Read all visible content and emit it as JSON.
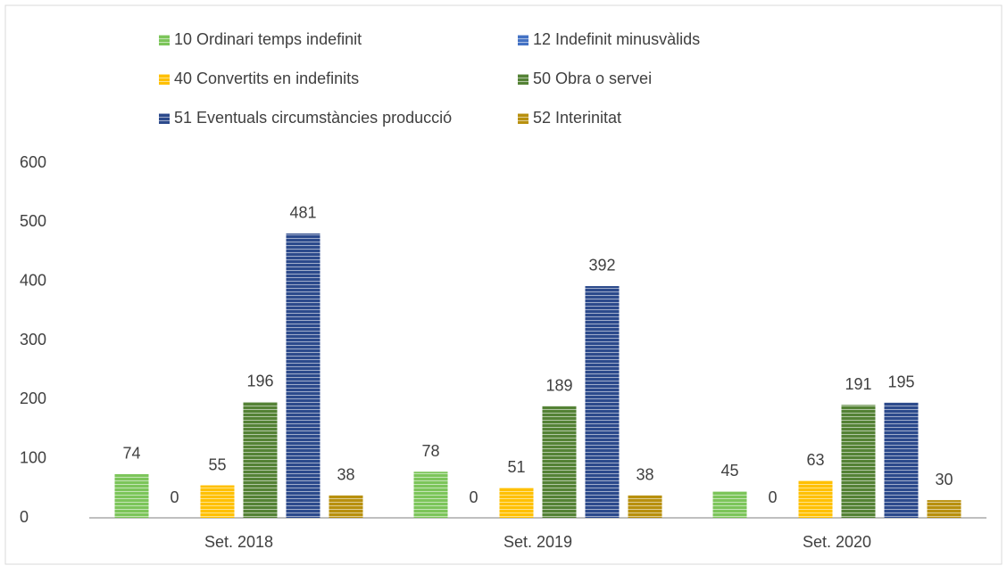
{
  "chart_data": {
    "type": "bar",
    "categories": [
      "Set. 2018",
      "Set. 2019",
      "Set. 2020"
    ],
    "series": [
      {
        "name": "10 Ordinari temps indefinit",
        "color": "#7cc55a",
        "values": [
          74,
          78,
          45
        ]
      },
      {
        "name": "12 Indefinit minusvàlids",
        "color": "#4472c4",
        "values": [
          0,
          0,
          0
        ]
      },
      {
        "name": "40 Convertits en indefinits",
        "color": "#ffc000",
        "values": [
          55,
          51,
          63
        ]
      },
      {
        "name": "50 Obra o servei",
        "color": "#548235",
        "values": [
          196,
          189,
          191
        ]
      },
      {
        "name": "51 Eventuals circumstàncies producció",
        "color": "#2c4a8c",
        "values": [
          481,
          392,
          195
        ]
      },
      {
        "name": "52 Interinitat",
        "color": "#b8900e",
        "values": [
          38,
          38,
          30
        ]
      }
    ],
    "ylim": [
      0,
      600
    ],
    "yticks": [
      0,
      100,
      200,
      300,
      400,
      500,
      600
    ],
    "grid": false
  }
}
